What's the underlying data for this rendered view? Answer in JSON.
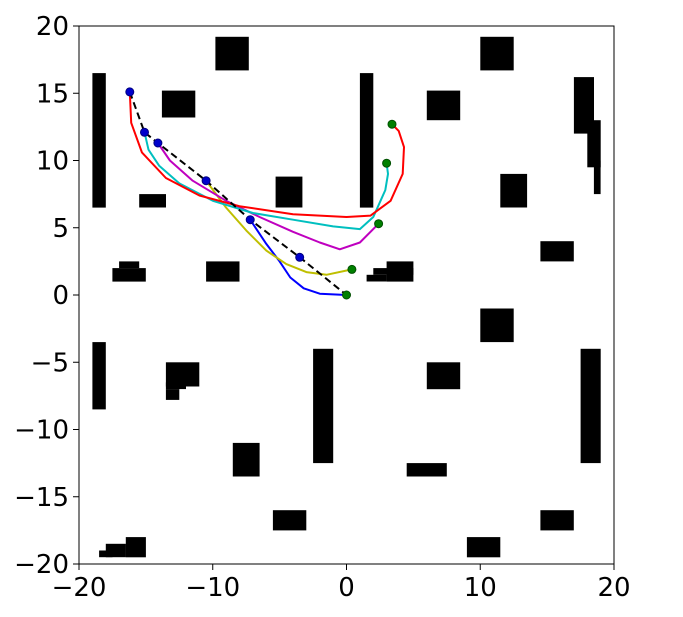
{
  "chart_data": {
    "type": "line",
    "title": "",
    "xlabel": "",
    "ylabel": "",
    "xlim": [
      -20,
      20
    ],
    "ylim": [
      -20,
      20
    ],
    "grid": false,
    "x_ticks": [
      -20,
      -10,
      0,
      10,
      20
    ],
    "y_ticks": [
      20,
      15,
      10,
      5,
      0,
      -5,
      -10,
      -15,
      -20
    ],
    "x_tick_labels": [
      "−20",
      "−10",
      "0",
      "10",
      "20"
    ],
    "y_tick_labels": [
      "20",
      "15",
      "10",
      "5",
      "0",
      "−5",
      "−10",
      "−15",
      "−20"
    ],
    "obstacle_color": "#000000",
    "obstacles": [
      {
        "x": [
          -19.0,
          -18.0
        ],
        "y": [
          6.5,
          16.5
        ]
      },
      {
        "x": [
          -9.8,
          -7.3
        ],
        "y": [
          16.7,
          19.2
        ]
      },
      {
        "x": [
          -13.8,
          -11.3
        ],
        "y": [
          13.2,
          15.2
        ]
      },
      {
        "x": [
          -15.5,
          -13.5
        ],
        "y": [
          6.5,
          7.5
        ]
      },
      {
        "x": [
          1.0,
          2.0
        ],
        "y": [
          6.5,
          16.5
        ]
      },
      {
        "x": [
          -5.3,
          -3.3
        ],
        "y": [
          6.5,
          8.8
        ]
      },
      {
        "x": [
          10.0,
          12.5
        ],
        "y": [
          16.7,
          19.2
        ]
      },
      {
        "x": [
          6.0,
          8.5
        ],
        "y": [
          13.0,
          15.2
        ]
      },
      {
        "x": [
          17.0,
          18.5
        ],
        "y": [
          12.0,
          16.2
        ]
      },
      {
        "x": [
          18.0,
          19.0
        ],
        "y": [
          9.5,
          13.0
        ]
      },
      {
        "x": [
          18.5,
          19.0
        ],
        "y": [
          7.5,
          10.0
        ]
      },
      {
        "x": [
          11.5,
          13.5
        ],
        "y": [
          6.5,
          9.0
        ]
      },
      {
        "x": [
          -17.5,
          -15.0
        ],
        "y": [
          1.0,
          2.0
        ]
      },
      {
        "x": [
          -17.0,
          -15.5
        ],
        "y": [
          2.0,
          2.5
        ]
      },
      {
        "x": [
          -10.5,
          -8.0
        ],
        "y": [
          1.0,
          2.5
        ]
      },
      {
        "x": [
          1.5,
          3.0
        ],
        "y": [
          1.0,
          1.5
        ]
      },
      {
        "x": [
          2.0,
          5.0
        ],
        "y": [
          1.5,
          2.0
        ]
      },
      {
        "x": [
          3.0,
          5.0
        ],
        "y": [
          1.0,
          2.5
        ]
      },
      {
        "x": [
          14.5,
          17.0
        ],
        "y": [
          2.5,
          4.0
        ]
      },
      {
        "x": [
          10.0,
          12.5
        ],
        "y": [
          -3.5,
          -1.0
        ]
      },
      {
        "x": [
          -19.0,
          -18.0
        ],
        "y": [
          -8.5,
          -3.5
        ]
      },
      {
        "x": [
          -13.5,
          -11.0
        ],
        "y": [
          -6.8,
          -5.0
        ]
      },
      {
        "x": [
          -13.5,
          -12.0
        ],
        "y": [
          -7.0,
          -6.5
        ]
      },
      {
        "x": [
          -13.5,
          -12.5
        ],
        "y": [
          -7.8,
          -7.0
        ]
      },
      {
        "x": [
          -2.5,
          -1.0
        ],
        "y": [
          -12.5,
          -4.0
        ]
      },
      {
        "x": [
          6.0,
          8.5
        ],
        "y": [
          -7.0,
          -5.0
        ]
      },
      {
        "x": [
          17.5,
          19.0
        ],
        "y": [
          -12.5,
          -4.0
        ]
      },
      {
        "x": [
          -8.5,
          -6.5
        ],
        "y": [
          -13.5,
          -11.0
        ]
      },
      {
        "x": [
          4.5,
          7.5
        ],
        "y": [
          -13.5,
          -12.5
        ]
      },
      {
        "x": [
          -5.5,
          -3.0
        ],
        "y": [
          -17.5,
          -16.0
        ]
      },
      {
        "x": [
          14.5,
          17.0
        ],
        "y": [
          -17.5,
          -16.0
        ]
      },
      {
        "x": [
          -16.5,
          -15.0
        ],
        "y": [
          -19.5,
          -18.0
        ]
      },
      {
        "x": [
          -18.0,
          -16.5
        ],
        "y": [
          -19.5,
          -18.5
        ]
      },
      {
        "x": [
          -18.5,
          -17.5
        ],
        "y": [
          -19.5,
          -19.0
        ]
      },
      {
        "x": [
          9.0,
          11.5
        ],
        "y": [
          -19.5,
          -18.0
        ]
      }
    ],
    "reference_path": {
      "color": "#000000",
      "style": "dashed",
      "points": [
        [
          -16.2,
          15.1
        ],
        [
          -15.1,
          12.1
        ],
        [
          -14.1,
          11.3
        ],
        [
          -10.5,
          8.5
        ],
        [
          -7.2,
          5.6
        ],
        [
          -3.5,
          2.8
        ],
        [
          0.0,
          0.0
        ]
      ]
    },
    "waypoint_color": "#0000cc",
    "waypoints": [
      [
        -16.2,
        15.1
      ],
      [
        -15.1,
        12.1
      ],
      [
        -14.1,
        11.3
      ],
      [
        -10.5,
        8.5
      ],
      [
        -7.2,
        5.6
      ],
      [
        -3.5,
        2.8
      ]
    ],
    "goal_color": "#008000",
    "goals": [
      [
        0.0,
        0.0
      ],
      [
        0.4,
        1.9
      ],
      [
        2.4,
        5.3
      ],
      [
        3.0,
        9.8
      ],
      [
        3.4,
        12.7
      ]
    ],
    "series": [
      {
        "color": "#0000ff",
        "points": [
          [
            -7.2,
            5.6
          ],
          [
            -6.0,
            3.8
          ],
          [
            -5.0,
            2.5
          ],
          [
            -4.2,
            1.3
          ],
          [
            -3.2,
            0.5
          ],
          [
            -2.0,
            0.1
          ],
          [
            0.0,
            0.0
          ]
        ]
      },
      {
        "color": "#bfbf00",
        "points": [
          [
            -10.5,
            8.5
          ],
          [
            -9.0,
            6.5
          ],
          [
            -7.5,
            4.8
          ],
          [
            -6.0,
            3.3
          ],
          [
            -4.5,
            2.3
          ],
          [
            -3.0,
            1.7
          ],
          [
            -1.5,
            1.5
          ],
          [
            0.4,
            1.9
          ]
        ]
      },
      {
        "color": "#bf00bf",
        "points": [
          [
            -14.1,
            11.3
          ],
          [
            -13.2,
            10.0
          ],
          [
            -11.5,
            8.5
          ],
          [
            -9.0,
            7.0
          ],
          [
            -6.5,
            5.8
          ],
          [
            -4.0,
            4.7
          ],
          [
            -2.0,
            3.9
          ],
          [
            -0.5,
            3.4
          ],
          [
            1.0,
            3.9
          ],
          [
            2.4,
            5.3
          ]
        ]
      },
      {
        "color": "#00bfbf",
        "points": [
          [
            -15.1,
            12.1
          ],
          [
            -14.8,
            10.8
          ],
          [
            -14.0,
            9.6
          ],
          [
            -12.5,
            8.3
          ],
          [
            -10.0,
            7.0
          ],
          [
            -7.0,
            6.1
          ],
          [
            -4.0,
            5.6
          ],
          [
            -1.0,
            5.1
          ],
          [
            1.0,
            4.9
          ],
          [
            2.0,
            5.8
          ],
          [
            2.9,
            7.8
          ],
          [
            3.1,
            9.0
          ],
          [
            3.0,
            9.8
          ]
        ]
      },
      {
        "color": "#ff0000",
        "points": [
          [
            -16.2,
            15.1
          ],
          [
            -16.1,
            12.8
          ],
          [
            -15.3,
            10.6
          ],
          [
            -13.5,
            8.7
          ],
          [
            -11.0,
            7.4
          ],
          [
            -8.0,
            6.6
          ],
          [
            -4.0,
            6.0
          ],
          [
            0.0,
            5.8
          ],
          [
            1.8,
            5.9
          ],
          [
            3.3,
            7.0
          ],
          [
            4.2,
            9.0
          ],
          [
            4.3,
            11.0
          ],
          [
            3.9,
            12.2
          ],
          [
            3.4,
            12.7
          ]
        ]
      }
    ]
  }
}
